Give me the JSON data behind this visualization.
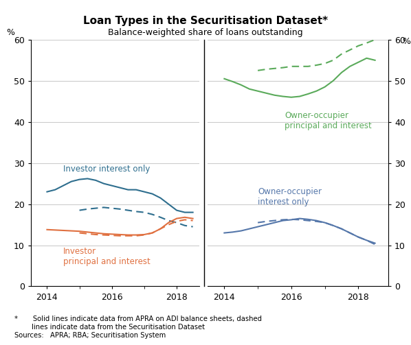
{
  "title": "Loan Types in the Securitisation Dataset*",
  "subtitle": "Balance-weighted share of loans outstanding",
  "footnote": "*       Solid lines indicate data from APRA on ADI balance sheets, dashed\n        lines indicate data from the Securitisation Dataset",
  "sources": "Sources:   APRA; RBA; Securitisation System",
  "ylabel_left": "%",
  "ylabel_right": "%",
  "ylim": [
    0,
    60
  ],
  "yticks": [
    0,
    10,
    20,
    30,
    40,
    50,
    60
  ],
  "left_panel": {
    "xlim_num": [
      2013.5,
      2018.7
    ],
    "xticks": [
      2014,
      2016,
      2018
    ],
    "investor_io_solid": {
      "x": [
        2014.0,
        2014.25,
        2014.5,
        2014.75,
        2015.0,
        2015.25,
        2015.5,
        2015.75,
        2016.0,
        2016.25,
        2016.5,
        2016.75,
        2017.0,
        2017.25,
        2017.5,
        2017.75,
        2018.0,
        2018.25,
        2018.5
      ],
      "y": [
        23.0,
        23.5,
        24.5,
        25.5,
        26.0,
        26.2,
        25.8,
        25.0,
        24.5,
        24.0,
        23.5,
        23.5,
        23.0,
        22.5,
        21.5,
        20.0,
        18.5,
        18.0,
        18.0
      ],
      "color": "#2e6e8e",
      "linestyle": "solid"
    },
    "investor_io_dashed": {
      "x": [
        2015.0,
        2015.25,
        2015.5,
        2015.75,
        2016.0,
        2016.25,
        2016.5,
        2016.75,
        2017.0,
        2017.25,
        2017.5,
        2017.75,
        2018.0,
        2018.25,
        2018.5
      ],
      "y": [
        18.5,
        18.8,
        19.0,
        19.2,
        19.0,
        18.8,
        18.5,
        18.2,
        18.0,
        17.5,
        16.8,
        16.0,
        15.5,
        14.8,
        14.5
      ],
      "color": "#2e6e8e",
      "linestyle": "dashed"
    },
    "investor_pi_solid": {
      "x": [
        2014.0,
        2014.25,
        2014.5,
        2014.75,
        2015.0,
        2015.25,
        2015.5,
        2015.75,
        2016.0,
        2016.25,
        2016.5,
        2016.75,
        2017.0,
        2017.25,
        2017.5,
        2017.75,
        2018.0,
        2018.25,
        2018.5
      ],
      "y": [
        13.8,
        13.7,
        13.6,
        13.5,
        13.4,
        13.2,
        13.0,
        12.8,
        12.7,
        12.6,
        12.5,
        12.5,
        12.6,
        13.0,
        14.0,
        15.5,
        16.5,
        16.8,
        16.5
      ],
      "color": "#e07040",
      "linestyle": "solid"
    },
    "investor_pi_dashed": {
      "x": [
        2015.0,
        2015.25,
        2015.5,
        2015.75,
        2016.0,
        2016.25,
        2016.5,
        2016.75,
        2017.0,
        2017.25,
        2017.5,
        2017.75,
        2018.0,
        2018.25,
        2018.5
      ],
      "y": [
        13.0,
        12.8,
        12.6,
        12.5,
        12.4,
        12.3,
        12.3,
        12.3,
        12.5,
        13.0,
        14.0,
        15.0,
        15.8,
        16.2,
        16.0
      ],
      "color": "#e07040",
      "linestyle": "dashed"
    }
  },
  "right_panel": {
    "xlim_num": [
      2013.5,
      2018.9
    ],
    "xticks": [
      2014,
      2016,
      2018
    ],
    "oo_pi_solid": {
      "x": [
        2014.0,
        2014.25,
        2014.5,
        2014.75,
        2015.0,
        2015.25,
        2015.5,
        2015.75,
        2016.0,
        2016.25,
        2016.5,
        2016.75,
        2017.0,
        2017.25,
        2017.5,
        2017.75,
        2018.0,
        2018.25,
        2018.5
      ],
      "y": [
        50.5,
        49.8,
        49.0,
        48.0,
        47.5,
        47.0,
        46.5,
        46.2,
        46.0,
        46.2,
        46.8,
        47.5,
        48.5,
        50.0,
        52.0,
        53.5,
        54.5,
        55.5,
        55.0
      ],
      "color": "#5aaa5a",
      "linestyle": "solid"
    },
    "oo_pi_dashed": {
      "x": [
        2015.0,
        2015.25,
        2015.5,
        2015.75,
        2016.0,
        2016.25,
        2016.5,
        2016.75,
        2017.0,
        2017.25,
        2017.5,
        2017.75,
        2018.0,
        2018.25,
        2018.5,
        2018.75
      ],
      "y": [
        52.5,
        52.8,
        53.0,
        53.2,
        53.5,
        53.5,
        53.5,
        53.8,
        54.2,
        55.0,
        56.5,
        57.5,
        58.5,
        59.2,
        60.0,
        60.5
      ],
      "color": "#5aaa5a",
      "linestyle": "dashed"
    },
    "oo_io_solid": {
      "x": [
        2014.0,
        2014.25,
        2014.5,
        2014.75,
        2015.0,
        2015.25,
        2015.5,
        2015.75,
        2016.0,
        2016.25,
        2016.5,
        2016.75,
        2017.0,
        2017.25,
        2017.5,
        2017.75,
        2018.0,
        2018.25,
        2018.5
      ],
      "y": [
        13.0,
        13.2,
        13.5,
        14.0,
        14.5,
        15.0,
        15.5,
        16.0,
        16.2,
        16.5,
        16.3,
        16.0,
        15.5,
        14.8,
        14.0,
        13.0,
        12.0,
        11.2,
        10.5
      ],
      "color": "#5577aa",
      "linestyle": "solid"
    },
    "oo_io_dashed": {
      "x": [
        2015.0,
        2015.25,
        2015.5,
        2015.75,
        2016.0,
        2016.25,
        2016.5,
        2016.75,
        2017.0,
        2017.25,
        2017.5,
        2017.75,
        2018.0,
        2018.25,
        2018.5
      ],
      "y": [
        15.5,
        15.8,
        16.0,
        16.2,
        16.3,
        16.2,
        16.0,
        15.8,
        15.5,
        14.8,
        14.0,
        13.0,
        12.0,
        11.2,
        10.2
      ],
      "color": "#5577aa",
      "linestyle": "dashed"
    }
  },
  "label_investor_io": "Investor interest only",
  "label_investor_pi": "Investor\nprincipal and interest",
  "label_oo_pi": "Owner-occupier\nprincipal and interest",
  "label_oo_io": "Owner-occupier\ninterest only",
  "grid_color": "#cccccc",
  "bg_color": "#ffffff",
  "divider_color": "#000000",
  "tick_color": "#000000",
  "axis_color": "#000000"
}
